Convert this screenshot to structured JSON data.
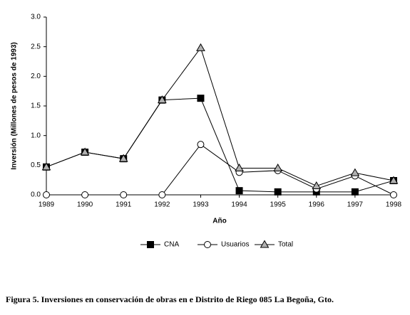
{
  "chart_data": {
    "type": "line",
    "x_label": "Año",
    "y_label": "Inversión (Millones de pesos de 1993)",
    "caption": "Figura 5. Inversiones en conservación de obras en e Distrito de Riego 085 La Begoña, Gto.",
    "x": [
      1989,
      1990,
      1991,
      1992,
      1993,
      1994,
      1995,
      1996,
      1997,
      1998
    ],
    "xlim": [
      1989,
      1998
    ],
    "xticks": [
      1989,
      1990,
      1991,
      1992,
      1993,
      1994,
      1995,
      1996,
      1997,
      1998
    ],
    "ylim": [
      0,
      3
    ],
    "yticks": [
      {
        "value": 0,
        "label": "0.0"
      },
      {
        "value": 0.5,
        "label": "0.5"
      },
      {
        "value": 1,
        "label": "1.0"
      },
      {
        "value": 1.5,
        "label": "1.5"
      },
      {
        "value": 2,
        "label": "2.0"
      },
      {
        "value": 2.5,
        "label": "2.5"
      },
      {
        "value": 3,
        "label": "3.0"
      }
    ],
    "grid": false,
    "legend": "bottom",
    "series": [
      {
        "name": "CNA",
        "color": "#000000",
        "marker": "square",
        "marker_color": "#000000",
        "values": [
          0.47,
          0.72,
          0.61,
          1.6,
          1.63,
          0.07,
          0.05,
          0.05,
          0.05,
          0.24
        ]
      },
      {
        "name": "Usuarios",
        "color": "#000000",
        "marker": "circle",
        "marker_color": "#ffffff",
        "values": [
          0,
          0,
          0,
          0,
          0.85,
          0.38,
          0.41,
          0.1,
          0.32,
          0
        ]
      },
      {
        "name": "Total",
        "color": "#000000",
        "marker": "triangle",
        "marker_color": "#b0b0b0",
        "values": [
          0.47,
          0.72,
          0.61,
          1.6,
          2.48,
          0.45,
          0.45,
          0.15,
          0.37,
          0.24
        ]
      }
    ]
  }
}
